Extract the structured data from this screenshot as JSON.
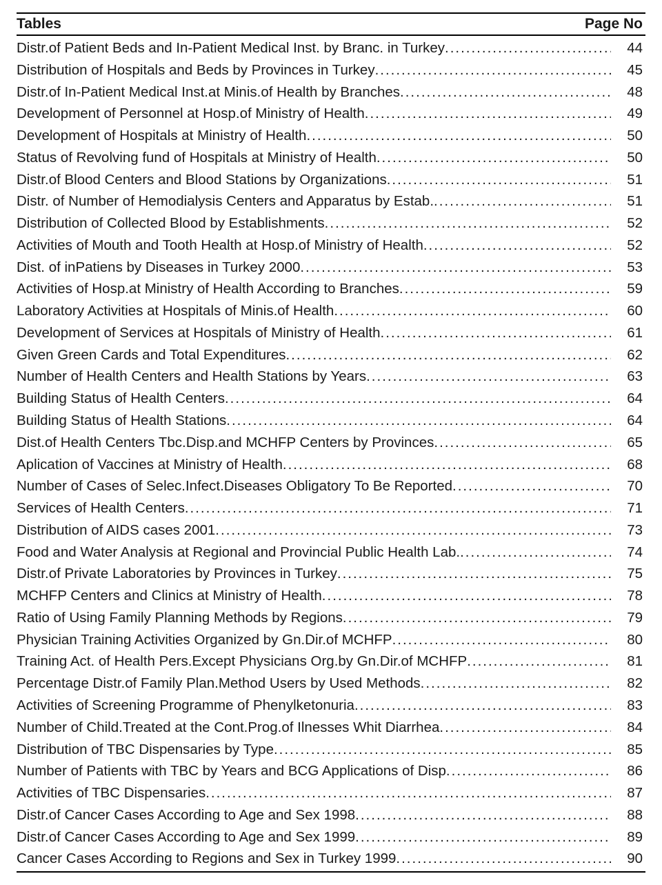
{
  "header": {
    "tables_label": "Tables",
    "pageno_label": "Page No"
  },
  "colors": {
    "text": "#1a1a1a",
    "rule": "#000000",
    "background": "#ffffff"
  },
  "typography": {
    "font_family": "Arial",
    "body_fontsize_pt": 15,
    "header_fontsize_pt": 16,
    "header_weight": "bold",
    "line_height": 1.55
  },
  "entries": [
    {
      "title": "Distr.of Patient Beds and In-Patient Medical Inst. by Branc. in Turkey",
      "page": 44
    },
    {
      "title": "Distribution of Hospitals and Beds by Provinces in Turkey",
      "page": 45
    },
    {
      "title": "Distr.of In-Patient Medical Inst.at Minis.of Health by Branches ",
      "page": 48
    },
    {
      "title": "Development of Personnel at Hosp.of Ministry of Health",
      "page": 49
    },
    {
      "title": "Development of Hospitals at Ministry of Health",
      "page": 50
    },
    {
      "title": "Status of Revolving fund of Hospitals at Ministry of Health",
      "page": 50
    },
    {
      "title": "Distr.of Blood Centers and Blood Stations by Organizations",
      "page": 51
    },
    {
      "title": "Distr. of Number of Hemodialysis Centers and Apparatus by Estab.  ",
      "page": 51
    },
    {
      "title": "Distribution of Collected Blood by Establishments",
      "page": 52
    },
    {
      "title": "Activities of Mouth and Tooth Health at Hosp.of Ministry of Health",
      "page": 52
    },
    {
      "title": "Dist. of inPatiens by Diseases in Turkey 2000",
      "page": 53
    },
    {
      "title": "Activities of Hosp.at Ministry of Health According to Branches",
      "page": 59
    },
    {
      "title": "Laboratory Activities at Hospitals of Minis.of Health",
      "page": 60
    },
    {
      "title": "Development of Services at Hospitals of Ministry of Health",
      "page": 61
    },
    {
      "title": "Given Green Cards and Total Expenditures",
      "page": 62
    },
    {
      "title": "Number of Health Centers and Health Stations by Years",
      "page": 63
    },
    {
      "title": "Building Status of Health Centers",
      "page": 64
    },
    {
      "title": "Building Status of Health Stations ",
      "page": 64
    },
    {
      "title": "Dist.of Health Centers Tbc.Disp.and MCHFP Centers by Provinces",
      "page": 65
    },
    {
      "title": "Aplication of Vaccines at Ministry of Health",
      "page": 68
    },
    {
      "title": "Number  of Cases of Selec.Infect.Diseases Obligatory To Be Reported",
      "page": 70
    },
    {
      "title": "Services of Health Centers",
      "page": 71
    },
    {
      "title": "Distribution of AIDS cases 2001",
      "page": 73
    },
    {
      "title": "Food and Water Analysis at Regional and Provincial Public Health Lab.  ",
      "page": 74
    },
    {
      "title": "Distr.of Private Laboratories by Provinces in Turkey",
      "page": 75
    },
    {
      "title": "MCHFP Centers and Clinics at Ministry of Health",
      "page": 78
    },
    {
      "title": "Ratio of Using Family Planning Methods by Regions",
      "page": 79
    },
    {
      "title": "Physician Training Activities Organized by Gn.Dir.of MCHFP",
      "page": 80
    },
    {
      "title": "Training Act. of Health Pers.Except Physicians Org.by Gn.Dir.of MCHFP",
      "page": 81
    },
    {
      "title": "Percentage Distr.of Family Plan.Method Users by Used Methods",
      "page": 82
    },
    {
      "title": "Activities of Screening Programme of Phenylketonuria ",
      "page": 83
    },
    {
      "title": "Number of Child.Treated at the Cont.Prog.of Ilnesses Whit Diarrhea",
      "page": 84
    },
    {
      "title": "Distribution of TBC Dispensaries by Type",
      "page": 85
    },
    {
      "title": "Number of Patients with TBC by Years and BCG Applications of Disp",
      "page": 86
    },
    {
      "title": "Activities of TBC Dispensaries",
      "page": 87
    },
    {
      "title": "Distr.of Cancer Cases According to  Age and Sex 1998",
      "page": 88
    },
    {
      "title": "Distr.of Cancer Cases According to  Age and Sex 1999",
      "page": 89
    },
    {
      "title": "Cancer Cases According to Regions and Sex in Turkey 1999",
      "page": 90
    }
  ]
}
